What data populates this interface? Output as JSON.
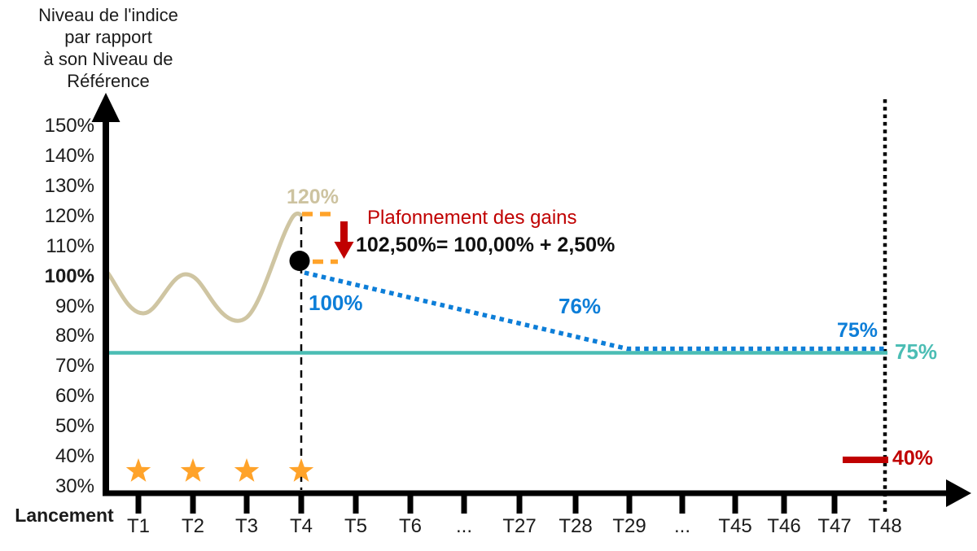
{
  "title": "Niveau de l'indice\npar rapport\nà son Niveau de\nRéférence",
  "y_axis": {
    "tick_labels": [
      "150%",
      "140%",
      "130%",
      "120%",
      "110%",
      "100%",
      "90%",
      "80%",
      "70%",
      "60%",
      "50%",
      "40%",
      "30%"
    ],
    "bold_tick": "100%"
  },
  "x_axis": {
    "origin_label": "Lancement",
    "tick_labels": [
      "T1",
      "T2",
      "T3",
      "T4",
      "T5",
      "T6",
      "...",
      "T27",
      "T28",
      "T29",
      "...",
      "T45",
      "T46",
      "T47",
      "T48"
    ]
  },
  "annotations": {
    "cap_level": "120%",
    "cap_title": "Plafonnement des gains",
    "cap_formula": "102,50%= 100,00% + 2,50%",
    "payoff_start": "100%",
    "payoff_mid": "76%",
    "payoff_end": "75%",
    "barrier_75": "75%",
    "barrier_40": "40%"
  },
  "colors": {
    "axis": "#000000",
    "index_curve": "#cfc5a2",
    "capped_line": "#0d7ed8",
    "barrier_75": "#4bbdb4",
    "barrier_40": "#c00000",
    "cap_dash": "#ffa32a",
    "star": "#ffa32a",
    "red_arrow": "#c00000",
    "cap_point": "#000000"
  },
  "chart_data": {
    "type": "line",
    "title": "Niveau de l'indice par rapport à son Niveau de Référence",
    "xlabel": "Lancement … T48",
    "ylabel": "%",
    "ylim": [
      30,
      150
    ],
    "y_ticks": [
      30,
      40,
      50,
      60,
      70,
      80,
      90,
      100,
      110,
      120,
      130,
      140,
      150
    ],
    "x_categories": [
      "Lancement",
      "T1",
      "T2",
      "T3",
      "T4",
      "T5",
      "T6",
      "...",
      "T27",
      "T28",
      "T29",
      "...",
      "T45",
      "T46",
      "T47",
      "T48"
    ],
    "grid": false,
    "legend": "none",
    "series": [
      {
        "name": "courbe-indice",
        "style": "solid",
        "color": "#cfc5a2",
        "points": [
          {
            "x": "Lancement",
            "y": 100
          },
          {
            "x": "T1",
            "y": 88
          },
          {
            "x": "T2",
            "y": 101
          },
          {
            "x": "T3",
            "y": 84
          },
          {
            "x": "T4",
            "y": 120
          }
        ],
        "peak_label": "120%"
      },
      {
        "name": "niveau-retenu-plafonne",
        "style": "dotted",
        "color": "#0d7ed8",
        "points": [
          {
            "x": "T4",
            "y": 100
          },
          {
            "x": "T29",
            "y": 76
          },
          {
            "x": "T48",
            "y": 75
          }
        ],
        "point_labels": [
          "100%",
          "76%",
          "75%"
        ]
      },
      {
        "name": "barriere-75",
        "style": "solid",
        "color": "#4bbdb4",
        "points": [
          {
            "x": "Lancement",
            "y": 75
          },
          {
            "x": "T48",
            "y": 75
          }
        ],
        "label": "75%"
      },
      {
        "name": "barriere-40",
        "style": "solid",
        "color": "#c00000",
        "points": [
          {
            "x": "T47",
            "y": 40
          },
          {
            "x": "T48",
            "y": 40
          }
        ],
        "label": "40%"
      }
    ],
    "markers": [
      {
        "type": "star",
        "color": "#ffa32a",
        "x": [
          "T1",
          "T2",
          "T3",
          "T4"
        ],
        "y": 35
      },
      {
        "type": "point",
        "color": "#000000",
        "x": "T4",
        "y": 102.5
      }
    ],
    "vlines": [
      {
        "x": "T4",
        "style": "dashed",
        "color": "#000000"
      },
      {
        "x": "T48",
        "style": "dotted",
        "color": "#000000"
      }
    ],
    "annotations": [
      {
        "text": "120%",
        "color": "#cdc3a0",
        "x": "T4",
        "y": 123
      },
      {
        "text": "Plafonnement des gains",
        "color": "#c00000",
        "x": "T5",
        "y": 117
      },
      {
        "text": "102,50%= 100,00% + 2,50%",
        "color": "#111111",
        "x": "T5",
        "y": 109
      },
      {
        "text": "100%",
        "color": "#0d7ed8",
        "x": "T4",
        "y": 95
      },
      {
        "text": "76%",
        "color": "#0d7ed8",
        "x": "T28",
        "y": 93
      },
      {
        "text": "75%",
        "color": "#0d7ed8",
        "x": "T47",
        "y": 85
      },
      {
        "text": "75%",
        "color": "#4bbdb4",
        "x": "T48",
        "y": 75
      },
      {
        "text": "40%",
        "color": "#c00000",
        "x": "T48",
        "y": 40
      }
    ]
  }
}
